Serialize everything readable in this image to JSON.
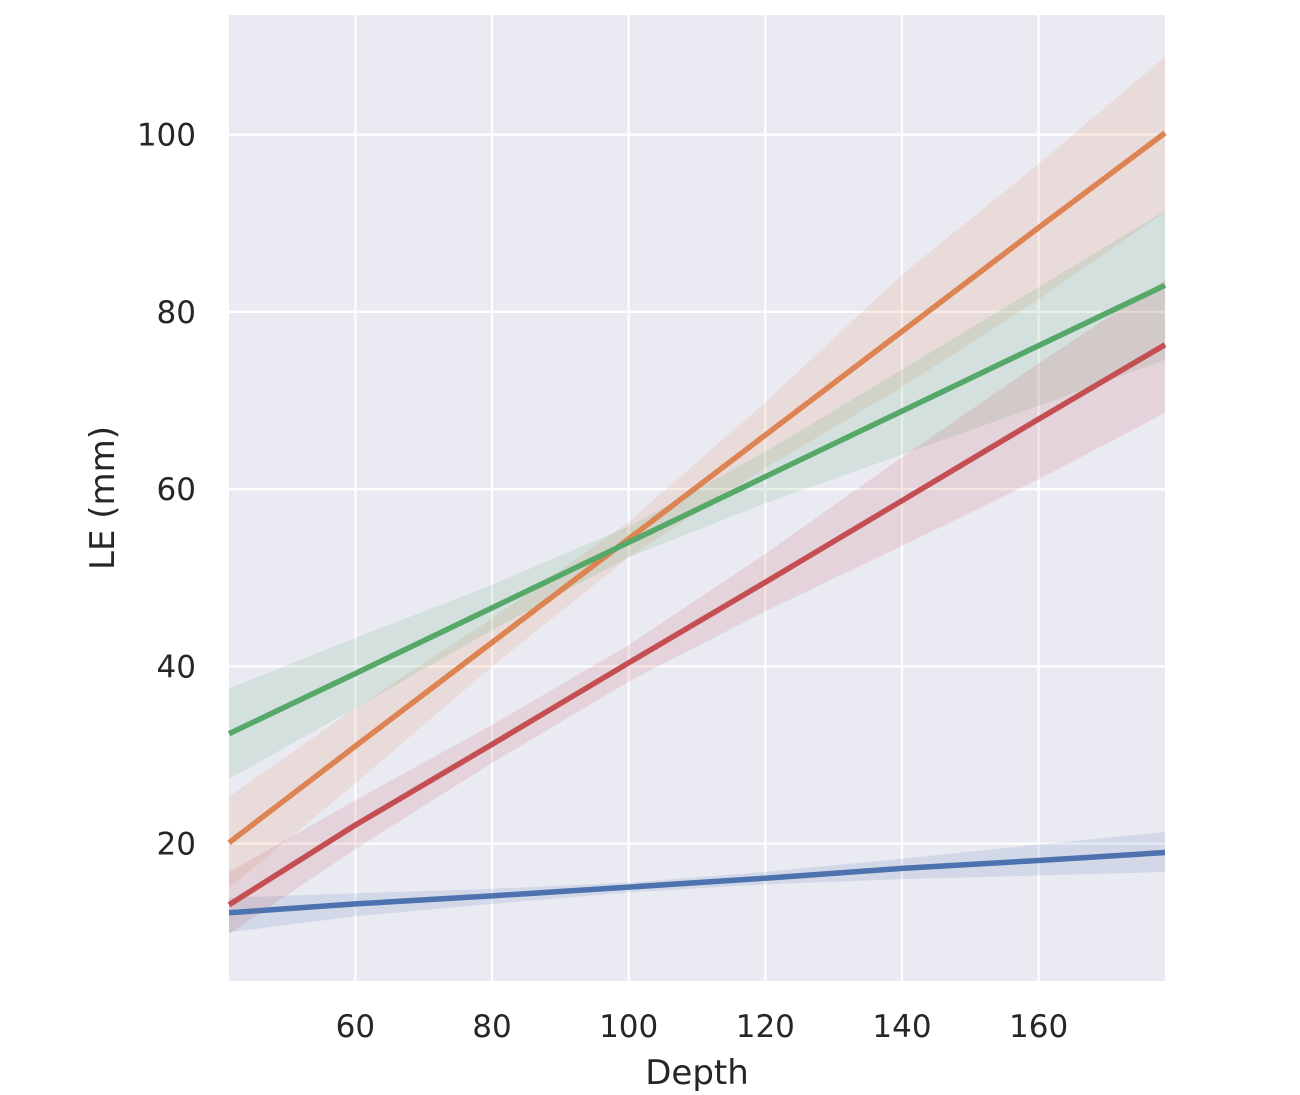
{
  "chart_data": {
    "type": "line",
    "title": "",
    "xlabel": "Depth",
    "ylabel": "LE (mm)",
    "xlim": [
      41.5,
      178.5
    ],
    "ylim": [
      4.5,
      113.5
    ],
    "xticks": [
      60,
      80,
      100,
      120,
      140,
      160
    ],
    "yticks": [
      20,
      40,
      60,
      80,
      100
    ],
    "grid": true,
    "legend": "none",
    "background_color": "#eaeaf2",
    "grid_color": "#ffffff",
    "series": [
      {
        "color": "#4c72b0",
        "x": [
          41.5,
          60,
          80,
          100,
          120,
          140,
          160,
          178.5
        ],
        "y": [
          12.2,
          13.2,
          14.1,
          15.1,
          16.1,
          17.2,
          18.1,
          19.0
        ],
        "ci_lower": [
          10.0,
          11.8,
          13.2,
          14.5,
          15.4,
          16.0,
          16.4,
          16.8
        ],
        "ci_upper": [
          13.9,
          14.4,
          14.9,
          15.6,
          16.8,
          18.3,
          19.9,
          21.3
        ]
      },
      {
        "color": "#dd8452",
        "x": [
          41.5,
          60,
          80,
          100,
          120,
          140,
          160,
          178.5
        ],
        "y": [
          20.1,
          31.0,
          42.7,
          54.4,
          66.1,
          77.8,
          89.5,
          100.2
        ],
        "ci_lower": [
          15.0,
          26.8,
          40.0,
          52.3,
          62.4,
          71.5,
          81.4,
          91.3
        ],
        "ci_upper": [
          25.3,
          35.3,
          45.4,
          56.3,
          69.8,
          84.2,
          96.7,
          108.8
        ]
      },
      {
        "color": "#55a868",
        "x": [
          41.5,
          60,
          80,
          100,
          120,
          140,
          160,
          178.5
        ],
        "y": [
          32.4,
          39.2,
          46.6,
          54.0,
          61.4,
          68.8,
          76.2,
          83.0
        ],
        "ci_lower": [
          27.3,
          35.3,
          44.1,
          52.3,
          58.4,
          63.9,
          69.4,
          74.6
        ],
        "ci_upper": [
          37.5,
          43.2,
          49.2,
          55.8,
          64.2,
          73.5,
          82.8,
          91.4
        ]
      },
      {
        "color": "#c44e52",
        "x": [
          41.5,
          60,
          80,
          100,
          120,
          140,
          160,
          178.5
        ],
        "y": [
          13.1,
          22.1,
          31.2,
          40.4,
          49.5,
          58.7,
          67.9,
          76.3
        ],
        "ci_lower": [
          9.8,
          19.4,
          29.1,
          38.3,
          46.2,
          53.6,
          61.1,
          68.6
        ],
        "ci_upper": [
          16.8,
          24.9,
          33.4,
          42.4,
          52.7,
          63.6,
          74.2,
          83.6
        ]
      }
    ]
  }
}
